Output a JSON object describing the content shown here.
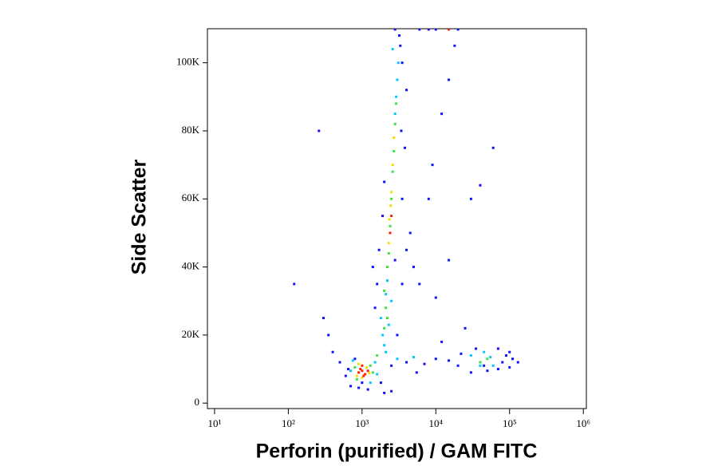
{
  "chart_data": {
    "type": "scatter",
    "x_label": "Perforin (purified) / GAM FITC",
    "y_label": "Side Scatter",
    "xscale": "log",
    "xlim": [
      8,
      1100000
    ],
    "xticks": [
      {
        "value": 10,
        "label": "10¹"
      },
      {
        "value": 100,
        "label": "10²"
      },
      {
        "value": 1000,
        "label": "10³"
      },
      {
        "value": 10000,
        "label": "10⁴"
      },
      {
        "value": 100000,
        "label": "10⁵"
      },
      {
        "value": 1000000,
        "label": "10⁶"
      }
    ],
    "ylim": [
      -1600,
      110000
    ],
    "yticks": [
      0,
      {
        "value": 20000,
        "label": "20K"
      },
      {
        "value": 40000,
        "label": "40K"
      },
      {
        "value": 60000,
        "label": "60K"
      },
      {
        "value": 80000,
        "label": "80K"
      },
      {
        "value": 100000,
        "label": "100K"
      }
    ],
    "series": [
      {
        "color": "#1010ff",
        "x": [
          600,
          500,
          700,
          1800,
          2500,
          4000,
          7000,
          10000,
          15000,
          20000,
          80000,
          90000,
          100000,
          110000,
          3500,
          3300,
          3200,
          4000,
          5000,
          6000,
          8000,
          9000,
          12000,
          15000,
          18000,
          20000,
          3500,
          3800,
          4500,
          1600,
          1500,
          1400,
          1700,
          400,
          350,
          300,
          260,
          120,
          60000,
          40000,
          30000,
          25000,
          12000,
          30000,
          70000,
          130000,
          2000,
          1200,
          900,
          22000,
          5500,
          3000,
          3500,
          2800,
          1900,
          2000,
          3400,
          4000,
          10000,
          15000,
          2500,
          2800,
          10000,
          6000,
          8000,
          800,
          650,
          1000,
          50000,
          35000,
          45000,
          100000,
          70000
        ],
        "values": [
          8000,
          12000,
          5000,
          6000,
          11000,
          12000,
          11500,
          13000,
          12500,
          11000,
          12000,
          14000,
          15000,
          13000,
          100000,
          105000,
          108000,
          45000,
          40000,
          35000,
          60000,
          70000,
          85000,
          95000,
          105000,
          109800,
          60000,
          75000,
          50000,
          35000,
          28000,
          40000,
          45000,
          15000,
          20000,
          25000,
          80000,
          35000,
          75000,
          64000,
          60000,
          22000,
          18000,
          9000,
          10000,
          12000,
          3000,
          4000,
          4500,
          14500,
          9000,
          20000,
          35000,
          42000,
          55000,
          65000,
          80000,
          92000,
          31000,
          42000,
          3500,
          109800,
          109800,
          109800,
          109800,
          13000,
          10000,
          6000,
          9500,
          16000,
          11000,
          10500,
          16000
        ]
      },
      {
        "color": "#00c8ff",
        "x": [
          700,
          1500,
          1600,
          1900,
          2100,
          2200,
          2900,
          3000,
          2800,
          2000,
          2100,
          3000,
          5000,
          30000,
          60000,
          45000,
          2500,
          3100,
          1800,
          750,
          1300,
          2600,
          2300,
          55000,
          40000
        ],
        "values": [
          9500,
          12000,
          8500,
          20000,
          32000,
          36000,
          90000,
          95000,
          85000,
          17000,
          15000,
          13000,
          13500,
          14000,
          11000,
          15000,
          30000,
          100000,
          25000,
          12500,
          6000,
          104000,
          23000,
          13500,
          11000
        ]
      },
      {
        "color": "#40e040",
        "x": [
          800,
          1300,
          1400,
          850,
          2200,
          2600,
          2800,
          2900,
          2400,
          2300,
          2700,
          2100,
          2200,
          2000,
          2500,
          50000,
          40000,
          2000,
          1600
        ],
        "values": [
          10500,
          11000,
          9000,
          7000,
          40000,
          68000,
          82000,
          88000,
          52000,
          44000,
          74000,
          28000,
          25000,
          22000,
          60000,
          13000,
          12000,
          33000,
          14000
        ]
      },
      {
        "color": "#f0e000",
        "x": [
          850,
          1150,
          1250,
          900,
          2500,
          2600,
          2300,
          2450,
          2700,
          1000,
          2350
        ],
        "values": [
          8000,
          10500,
          8800,
          11500,
          62000,
          70000,
          47000,
          58000,
          78000,
          7500,
          54000
        ]
      },
      {
        "color": "#ff2000",
        "x": [
          900,
          1000,
          1100,
          950,
          1050,
          1000,
          1200,
          2500,
          2400,
          15000
        ],
        "values": [
          9000,
          9500,
          8500,
          10000,
          8000,
          11000,
          9500,
          55000,
          50000,
          109800
        ]
      }
    ]
  }
}
